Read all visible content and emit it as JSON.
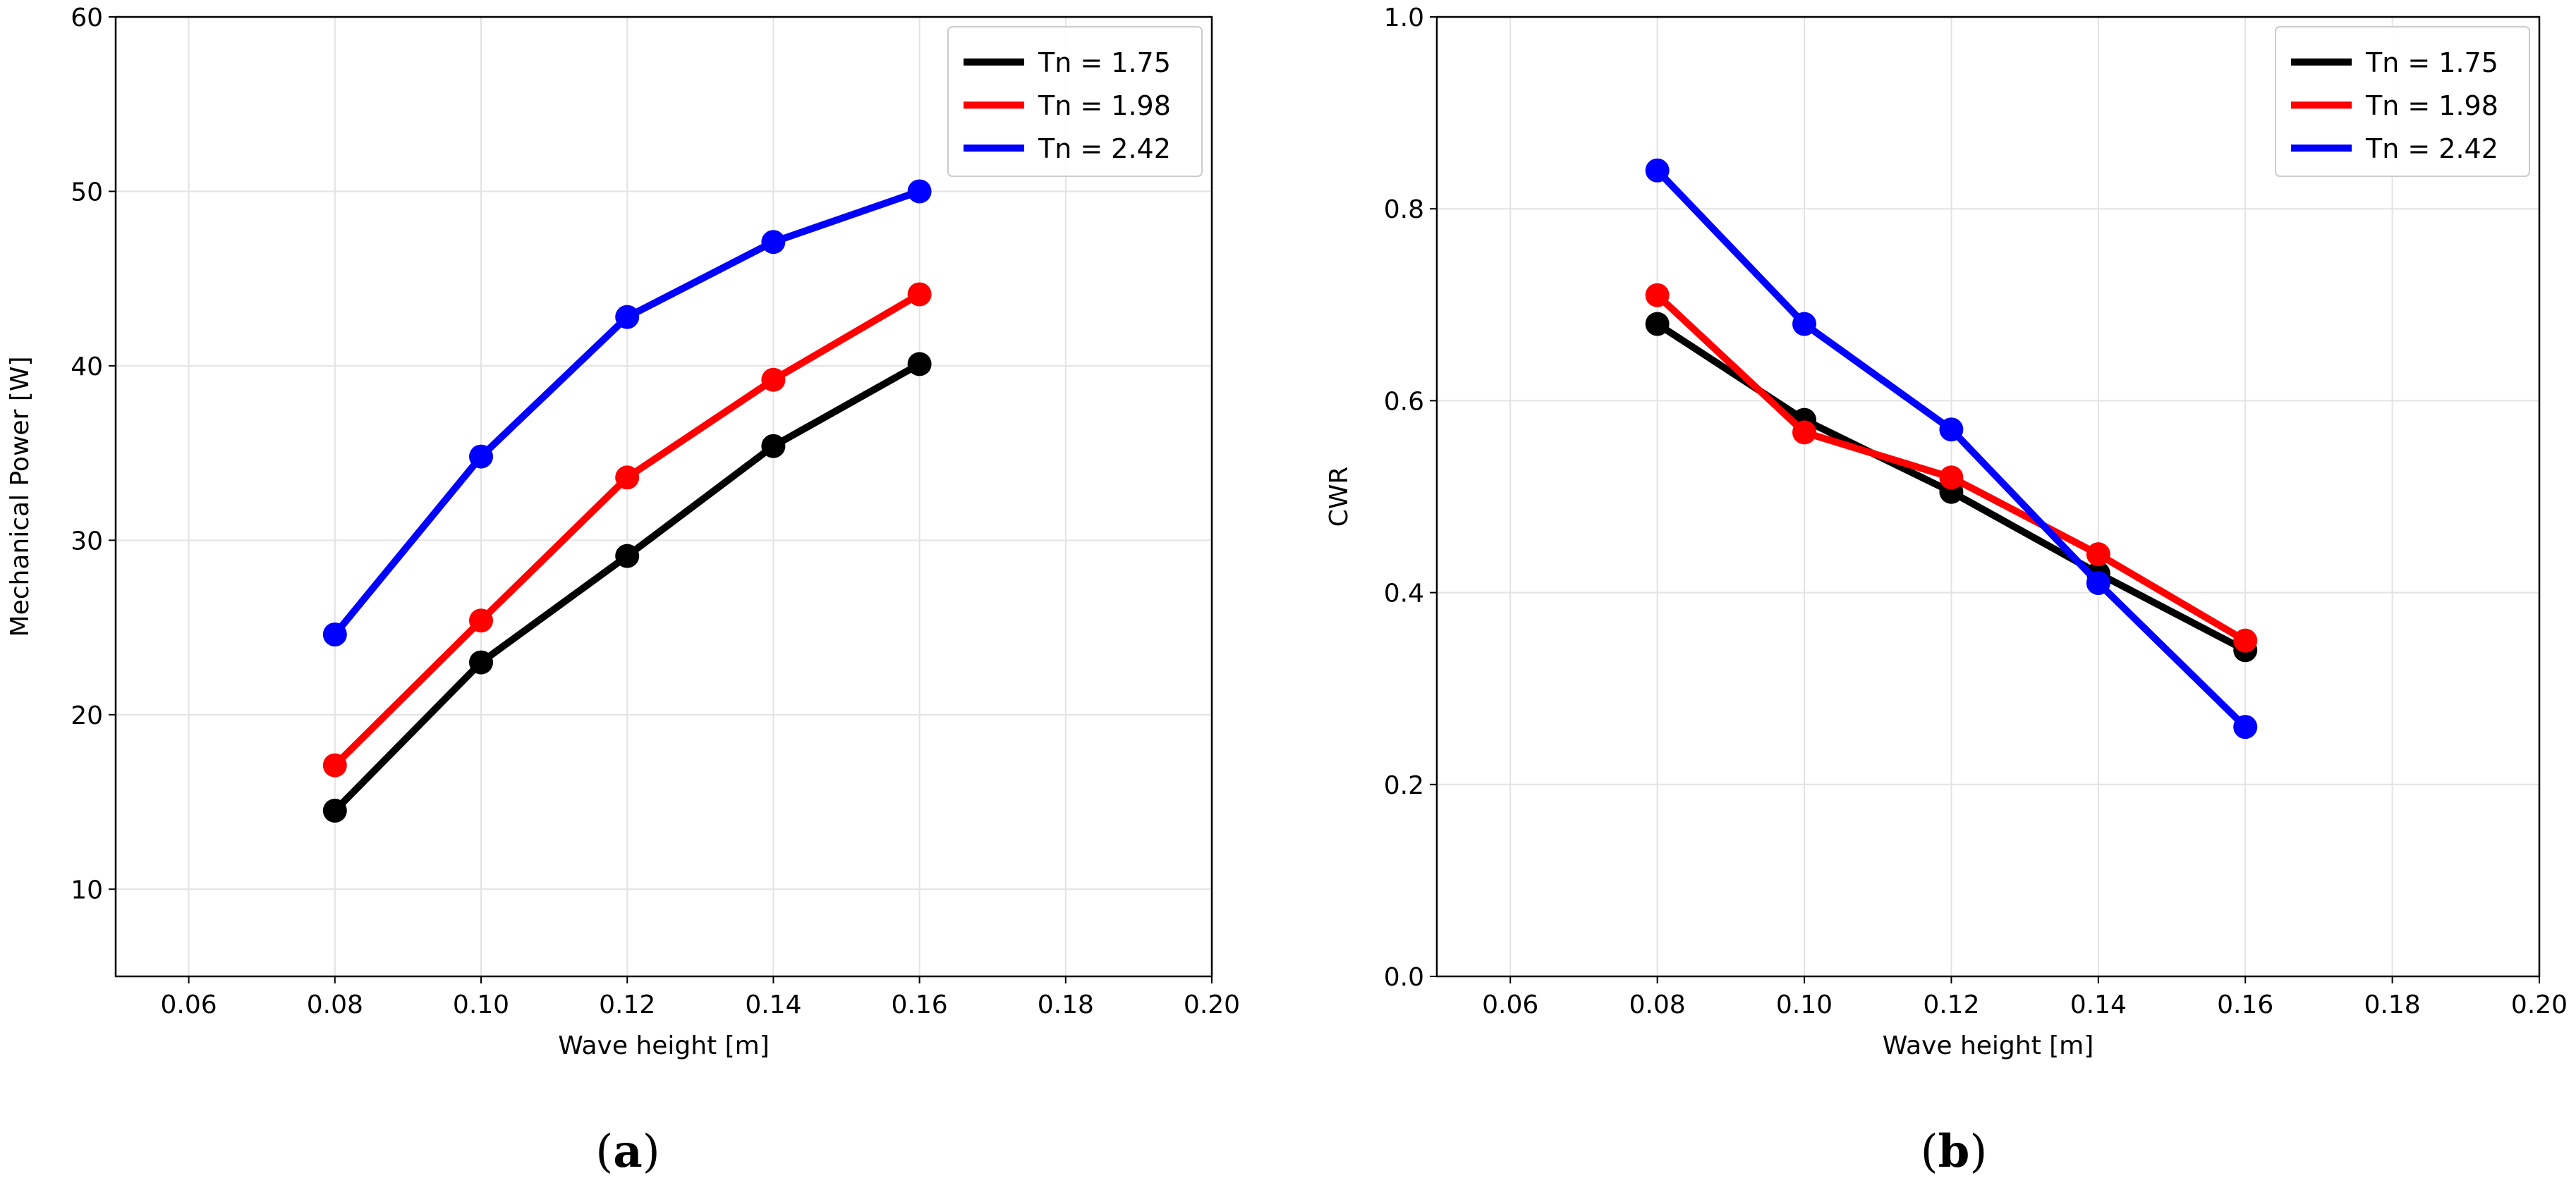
{
  "chart_data": [
    {
      "type": "line",
      "caption_open": "(",
      "caption_letter": "a",
      "caption_close": ")",
      "xlabel": "Wave height [m]",
      "ylabel": "Mechanical Power [W]",
      "xlim": [
        0.05,
        0.2
      ],
      "ylim": [
        5,
        60
      ],
      "xticks": [
        0.06,
        0.08,
        0.1,
        0.12,
        0.14,
        0.16,
        0.18,
        0.2
      ],
      "xtick_labels": [
        "0.06",
        "0.08",
        "0.10",
        "0.12",
        "0.14",
        "0.16",
        "0.18",
        "0.20"
      ],
      "yticks": [
        10,
        20,
        30,
        40,
        50,
        60
      ],
      "ytick_labels": [
        "10",
        "20",
        "30",
        "40",
        "50",
        "60"
      ],
      "grid": true,
      "legend_position": "top-right",
      "x": [
        0.08,
        0.1,
        0.12,
        0.14,
        0.16
      ],
      "series": [
        {
          "name": "Tn = 1.75",
          "color": "#000000",
          "values": [
            14.5,
            23.0,
            29.1,
            35.4,
            40.1
          ]
        },
        {
          "name": "Tn = 1.98",
          "color": "#ff0000",
          "values": [
            17.1,
            25.4,
            33.6,
            39.2,
            44.1
          ]
        },
        {
          "name": "Tn = 2.42",
          "color": "#0000ff",
          "values": [
            24.6,
            34.8,
            42.8,
            47.1,
            50.0
          ]
        }
      ]
    },
    {
      "type": "line",
      "caption_open": "(",
      "caption_letter": "b",
      "caption_close": ")",
      "xlabel": "Wave height [m]",
      "ylabel": "CWR",
      "xlim": [
        0.05,
        0.2
      ],
      "ylim": [
        0.0,
        1.0
      ],
      "xticks": [
        0.06,
        0.08,
        0.1,
        0.12,
        0.14,
        0.16,
        0.18,
        0.2
      ],
      "xtick_labels": [
        "0.06",
        "0.08",
        "0.10",
        "0.12",
        "0.14",
        "0.16",
        "0.18",
        "0.20"
      ],
      "yticks": [
        0.0,
        0.2,
        0.4,
        0.6,
        0.8,
        1.0
      ],
      "ytick_labels": [
        "0.0",
        "0.2",
        "0.4",
        "0.6",
        "0.8",
        "1.0"
      ],
      "grid": true,
      "legend_position": "top-right",
      "x": [
        0.08,
        0.1,
        0.12,
        0.14,
        0.16
      ],
      "series": [
        {
          "name": "Tn = 1.75",
          "color": "#000000",
          "values": [
            0.68,
            0.58,
            0.505,
            0.42,
            0.34
          ]
        },
        {
          "name": "Tn = 1.98",
          "color": "#ff0000",
          "values": [
            0.71,
            0.567,
            0.52,
            0.44,
            0.35
          ]
        },
        {
          "name": "Tn = 2.42",
          "color": "#0000ff",
          "values": [
            0.84,
            0.68,
            0.57,
            0.41,
            0.26
          ]
        }
      ]
    }
  ]
}
